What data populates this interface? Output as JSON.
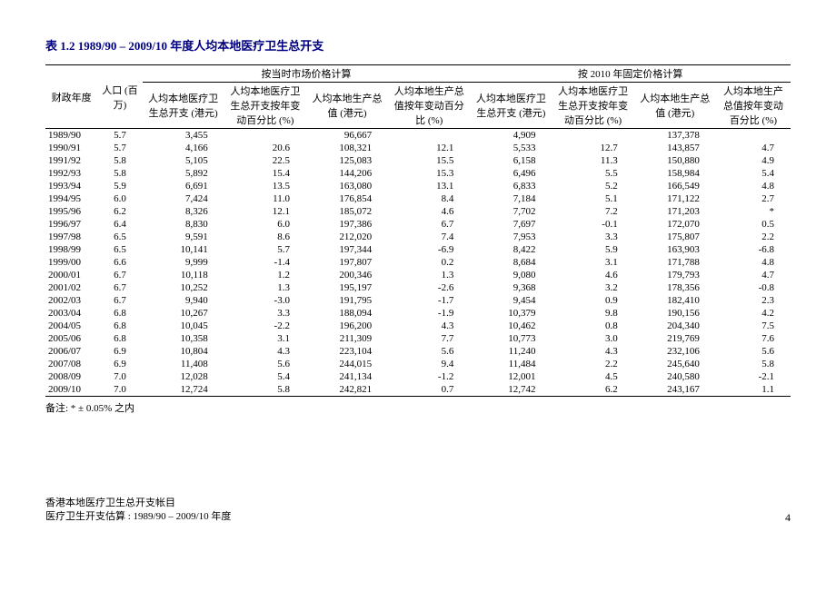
{
  "title": "表 1.2  1989/90 – 2009/10 年度人均本地医疗卫生总开支",
  "headers": {
    "fy": "财政年度",
    "pop": "人口 (百万)",
    "group1": "按当时市场价格计算",
    "group2": "按 2010 年固定价格计算",
    "c1": "人均本地医疗卫生总开支 (港元)",
    "c2": "人均本地医疗卫生总开支按年变动百分比 (%)",
    "c3": "人均本地生产总值 (港元)",
    "c4": "人均本地生产总值按年变动百分比 (%)",
    "c5": "人均本地医疗卫生总开支 (港元)",
    "c6": "人均本地医疗卫生总开支按年变动百分比 (%)",
    "c7": "人均本地生产总值 (港元)",
    "c8": "人均本地生产总值按年变动百分比 (%)"
  },
  "rows": [
    {
      "fy": "1989/90",
      "pop": "5.7",
      "c1": "3,455",
      "c2": "",
      "c3": "96,667",
      "c4": "",
      "c5": "4,909",
      "c6": "",
      "c7": "137,378",
      "c8": ""
    },
    {
      "fy": "1990/91",
      "pop": "5.7",
      "c1": "4,166",
      "c2": "20.6",
      "c3": "108,321",
      "c4": "12.1",
      "c5": "5,533",
      "c6": "12.7",
      "c7": "143,857",
      "c8": "4.7"
    },
    {
      "fy": "1991/92",
      "pop": "5.8",
      "c1": "5,105",
      "c2": "22.5",
      "c3": "125,083",
      "c4": "15.5",
      "c5": "6,158",
      "c6": "11.3",
      "c7": "150,880",
      "c8": "4.9"
    },
    {
      "fy": "1992/93",
      "pop": "5.8",
      "c1": "5,892",
      "c2": "15.4",
      "c3": "144,206",
      "c4": "15.3",
      "c5": "6,496",
      "c6": "5.5",
      "c7": "158,984",
      "c8": "5.4"
    },
    {
      "fy": "1993/94",
      "pop": "5.9",
      "c1": "6,691",
      "c2": "13.5",
      "c3": "163,080",
      "c4": "13.1",
      "c5": "6,833",
      "c6": "5.2",
      "c7": "166,549",
      "c8": "4.8"
    },
    {
      "fy": "1994/95",
      "pop": "6.0",
      "c1": "7,424",
      "c2": "11.0",
      "c3": "176,854",
      "c4": "8.4",
      "c5": "7,184",
      "c6": "5.1",
      "c7": "171,122",
      "c8": "2.7"
    },
    {
      "fy": "1995/96",
      "pop": "6.2",
      "c1": "8,326",
      "c2": "12.1",
      "c3": "185,072",
      "c4": "4.6",
      "c5": "7,702",
      "c6": "7.2",
      "c7": "171,203",
      "c8": "*"
    },
    {
      "fy": "1996/97",
      "pop": "6.4",
      "c1": "8,830",
      "c2": "6.0",
      "c3": "197,386",
      "c4": "6.7",
      "c5": "7,697",
      "c6": "-0.1",
      "c7": "172,070",
      "c8": "0.5"
    },
    {
      "fy": "1997/98",
      "pop": "6.5",
      "c1": "9,591",
      "c2": "8.6",
      "c3": "212,020",
      "c4": "7.4",
      "c5": "7,953",
      "c6": "3.3",
      "c7": "175,807",
      "c8": "2.2"
    },
    {
      "fy": "1998/99",
      "pop": "6.5",
      "c1": "10,141",
      "c2": "5.7",
      "c3": "197,344",
      "c4": "-6.9",
      "c5": "8,422",
      "c6": "5.9",
      "c7": "163,903",
      "c8": "-6.8"
    },
    {
      "fy": "1999/00",
      "pop": "6.6",
      "c1": "9,999",
      "c2": "-1.4",
      "c3": "197,807",
      "c4": "0.2",
      "c5": "8,684",
      "c6": "3.1",
      "c7": "171,788",
      "c8": "4.8"
    },
    {
      "fy": "2000/01",
      "pop": "6.7",
      "c1": "10,118",
      "c2": "1.2",
      "c3": "200,346",
      "c4": "1.3",
      "c5": "9,080",
      "c6": "4.6",
      "c7": "179,793",
      "c8": "4.7"
    },
    {
      "fy": "2001/02",
      "pop": "6.7",
      "c1": "10,252",
      "c2": "1.3",
      "c3": "195,197",
      "c4": "-2.6",
      "c5": "9,368",
      "c6": "3.2",
      "c7": "178,356",
      "c8": "-0.8"
    },
    {
      "fy": "2002/03",
      "pop": "6.7",
      "c1": "9,940",
      "c2": "-3.0",
      "c3": "191,795",
      "c4": "-1.7",
      "c5": "9,454",
      "c6": "0.9",
      "c7": "182,410",
      "c8": "2.3"
    },
    {
      "fy": "2003/04",
      "pop": "6.8",
      "c1": "10,267",
      "c2": "3.3",
      "c3": "188,094",
      "c4": "-1.9",
      "c5": "10,379",
      "c6": "9.8",
      "c7": "190,156",
      "c8": "4.2"
    },
    {
      "fy": "2004/05",
      "pop": "6.8",
      "c1": "10,045",
      "c2": "-2.2",
      "c3": "196,200",
      "c4": "4.3",
      "c5": "10,462",
      "c6": "0.8",
      "c7": "204,340",
      "c8": "7.5"
    },
    {
      "fy": "2005/06",
      "pop": "6.8",
      "c1": "10,358",
      "c2": "3.1",
      "c3": "211,309",
      "c4": "7.7",
      "c5": "10,773",
      "c6": "3.0",
      "c7": "219,769",
      "c8": "7.6"
    },
    {
      "fy": "2006/07",
      "pop": "6.9",
      "c1": "10,804",
      "c2": "4.3",
      "c3": "223,104",
      "c4": "5.6",
      "c5": "11,240",
      "c6": "4.3",
      "c7": "232,106",
      "c8": "5.6"
    },
    {
      "fy": "2007/08",
      "pop": "6.9",
      "c1": "11,408",
      "c2": "5.6",
      "c3": "244,015",
      "c4": "9.4",
      "c5": "11,484",
      "c6": "2.2",
      "c7": "245,640",
      "c8": "5.8"
    },
    {
      "fy": "2008/09",
      "pop": "7.0",
      "c1": "12,028",
      "c2": "5.4",
      "c3": "241,134",
      "c4": "-1.2",
      "c5": "12,001",
      "c6": "4.5",
      "c7": "240,580",
      "c8": "-2.1"
    },
    {
      "fy": "2009/10",
      "pop": "7.0",
      "c1": "12,724",
      "c2": "5.8",
      "c3": "242,821",
      "c4": "0.7",
      "c5": "12,742",
      "c6": "6.2",
      "c7": "243,167",
      "c8": "1.1"
    }
  ],
  "note": "备注:    * ± 0.05% 之内",
  "footer1": "香港本地医疗卫生总开支帐目",
  "footer2": "医疗卫生开支估算 : 1989/90 – 2009/10 年度",
  "page": "4"
}
